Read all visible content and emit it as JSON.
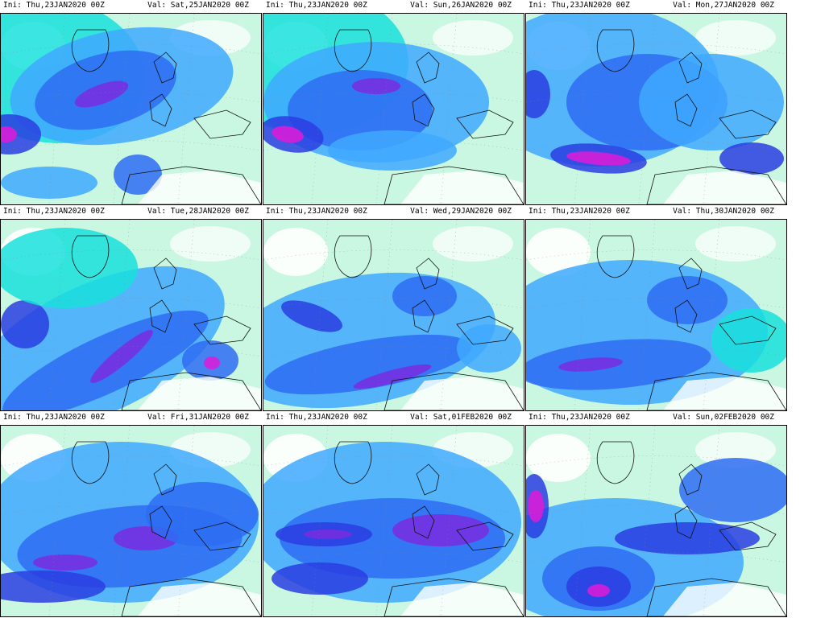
{
  "layout": {
    "rows": 3,
    "cols": 3
  },
  "colors": {
    "white": "#ffffff",
    "lightgreen": "#9ff0c8",
    "cyan": "#19e0dc",
    "lightblue": "#3fa9ff",
    "blue": "#2e6cf2",
    "darkblue": "#2a3de0",
    "purple": "#7a2ce0",
    "magenta": "#e01ad8",
    "coast": "#111111"
  },
  "panels": [
    {
      "ini": "Ini: Thu,23JAN2020 00Z",
      "val": "Val: Sat,25JAN2020 00Z"
    },
    {
      "ini": "Ini: Thu,23JAN2020 00Z",
      "val": "Val: Sun,26JAN2020 00Z"
    },
    {
      "ini": "Ini: Thu,23JAN2020 00Z",
      "val": "Val: Mon,27JAN2020 00Z"
    },
    {
      "ini": "Ini: Thu,23JAN2020 00Z",
      "val": "Val: Tue,28JAN2020 00Z"
    },
    {
      "ini": "Ini: Thu,23JAN2020 00Z",
      "val": "Val: Wed,29JAN2020 00Z"
    },
    {
      "ini": "Ini: Thu,23JAN2020 00Z",
      "val": "Val: Thu,30JAN2020 00Z"
    },
    {
      "ini": "Ini: Thu,23JAN2020 00Z",
      "val": "Val: Fri,31JAN2020 00Z"
    },
    {
      "ini": "Ini: Thu,23JAN2020 00Z",
      "val": "Val: Sat,01FEB2020 00Z"
    },
    {
      "ini": "Ini: Thu,23JAN2020 00Z",
      "val": "Val: Sun,02FEB2020 00Z"
    }
  ]
}
